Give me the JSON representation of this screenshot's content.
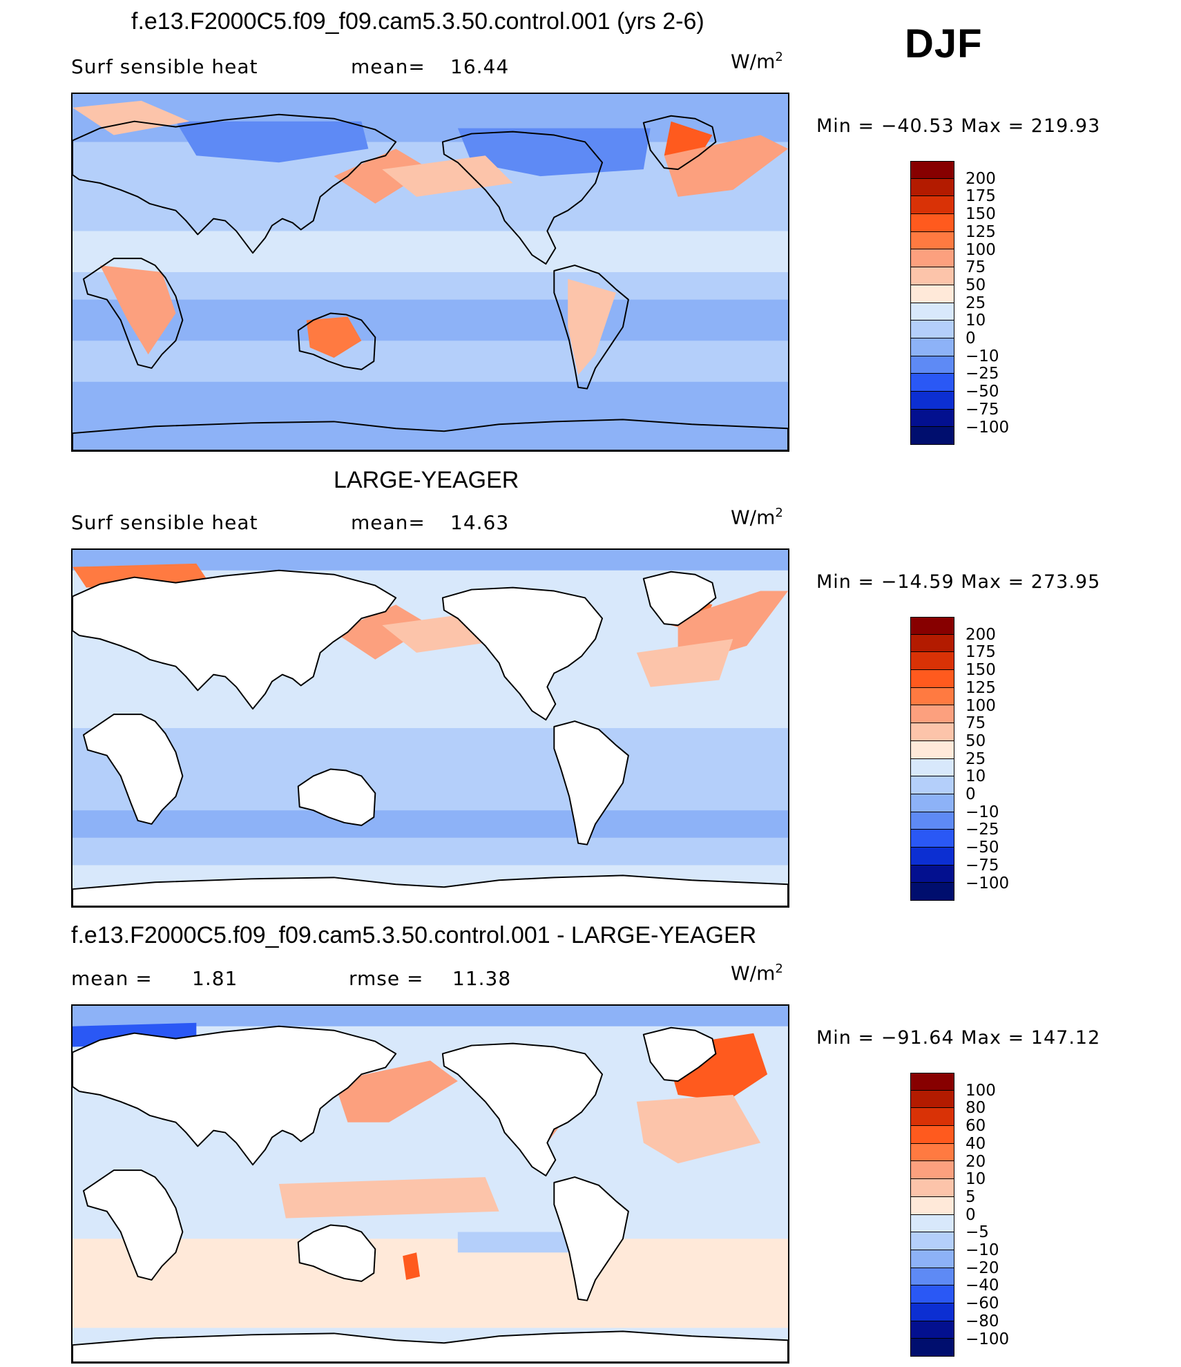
{
  "season": "DJF",
  "colors": {
    "ocean_base": "#b4cffa",
    "land": "#ffffff",
    "coast": "#000000"
  },
  "panels": [
    {
      "title": "f.e13.F2000C5.f09_f09.cam5.3.50.control.001 (yrs 2-6)",
      "left_label": "Surf  sensible  heat",
      "stat_label": "mean=",
      "stat_value": "16.44",
      "stat2_label": "",
      "stat2_value": "",
      "units": "W/m",
      "units_exp": "2",
      "min_text": "Min  =  −40.53  Max  =  219.93",
      "colorbar": {
        "labels": [
          "200",
          "175",
          "150",
          "125",
          "100",
          "75",
          "50",
          "25",
          "10",
          "0",
          "−10",
          "−25",
          "−50",
          "−75",
          "−100"
        ],
        "colors": [
          "#870000",
          "#b31b00",
          "#d93206",
          "#ff5a1e",
          "#ff7a41",
          "#fca07e",
          "#fcc4aa",
          "#ffe9d9",
          "#d8e8fb",
          "#b4cffa",
          "#8db2f7",
          "#5e8af5",
          "#2a58f5",
          "#0c2fd2",
          "#03108f",
          "#000e6e"
        ]
      },
      "map_theme": "model"
    },
    {
      "title": "LARGE-YEAGER",
      "left_label": "Surf  sensible  heat",
      "stat_label": "mean=",
      "stat_value": "14.63",
      "stat2_label": "",
      "stat2_value": "",
      "units": "W/m",
      "units_exp": "2",
      "min_text": "Min  =  −14.59  Max  =  273.95",
      "colorbar": {
        "labels": [
          "200",
          "175",
          "150",
          "125",
          "100",
          "75",
          "50",
          "25",
          "10",
          "0",
          "−10",
          "−25",
          "−50",
          "−75",
          "−100"
        ],
        "colors": [
          "#870000",
          "#b31b00",
          "#d93206",
          "#ff5a1e",
          "#ff7a41",
          "#fca07e",
          "#fcc4aa",
          "#ffe9d9",
          "#d8e8fb",
          "#b4cffa",
          "#8db2f7",
          "#5e8af5",
          "#2a58f5",
          "#0c2fd2",
          "#03108f",
          "#000e6e"
        ]
      },
      "map_theme": "obs"
    },
    {
      "title": "f.e13.F2000C5.f09_f09.cam5.3.50.control.001 - LARGE-YEAGER",
      "left_label": "mean  =",
      "stat_label": "",
      "stat_value": "1.81",
      "stat2_label": "rmse  =",
      "stat2_value": "11.38",
      "units": "W/m",
      "units_exp": "2",
      "min_text": "Min  =  −91.64  Max  =  147.12",
      "colorbar": {
        "labels": [
          "100",
          "80",
          "60",
          "40",
          "20",
          "10",
          "5",
          "0",
          "−5",
          "−10",
          "−20",
          "−40",
          "−60",
          "−80",
          "−100"
        ],
        "colors": [
          "#870000",
          "#b31b00",
          "#d93206",
          "#ff5a1e",
          "#ff7a41",
          "#fca07e",
          "#fcc4aa",
          "#ffe9d9",
          "#d8e8fb",
          "#b4cffa",
          "#8db2f7",
          "#5e8af5",
          "#2a58f5",
          "#0c2fd2",
          "#03108f",
          "#000e6e"
        ]
      },
      "map_theme": "diff"
    }
  ]
}
